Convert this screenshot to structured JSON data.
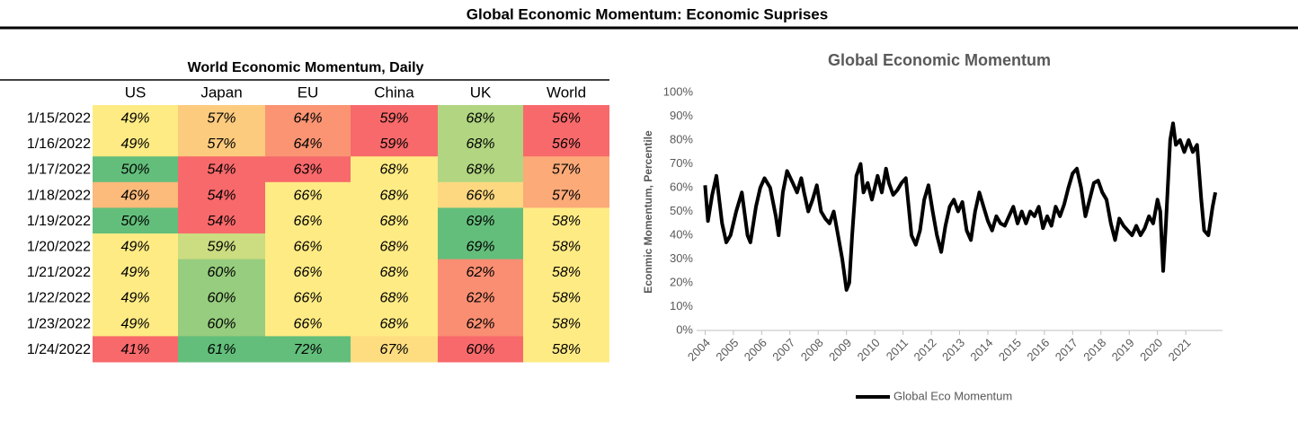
{
  "header": {
    "title": "Global Economic Momentum: Economic Suprises"
  },
  "table": {
    "title": "World Economic Momentum, Daily",
    "columns": [
      "US",
      "Japan",
      "EU",
      "China",
      "UK",
      "World"
    ],
    "rows": [
      {
        "date": "1/15/2022",
        "values": [
          49,
          57,
          64,
          59,
          68,
          56
        ],
        "value_labels": [
          "49%",
          "57%",
          "64%",
          "59%",
          "68%",
          "56%"
        ]
      },
      {
        "date": "1/16/2022",
        "values": [
          49,
          57,
          64,
          59,
          68,
          56
        ],
        "value_labels": [
          "49%",
          "57%",
          "64%",
          "59%",
          "68%",
          "56%"
        ]
      },
      {
        "date": "1/17/2022",
        "values": [
          50,
          54,
          63,
          68,
          68,
          57
        ],
        "value_labels": [
          "50%",
          "54%",
          "63%",
          "68%",
          "68%",
          "57%"
        ]
      },
      {
        "date": "1/18/2022",
        "values": [
          46,
          54,
          66,
          68,
          66,
          57
        ],
        "value_labels": [
          "46%",
          "54%",
          "66%",
          "68%",
          "66%",
          "57%"
        ]
      },
      {
        "date": "1/19/2022",
        "values": [
          50,
          54,
          66,
          68,
          69,
          58
        ],
        "value_labels": [
          "50%",
          "54%",
          "66%",
          "68%",
          "69%",
          "58%"
        ]
      },
      {
        "date": "1/20/2022",
        "values": [
          49,
          59,
          66,
          68,
          69,
          58
        ],
        "value_labels": [
          "49%",
          "59%",
          "66%",
          "68%",
          "69%",
          "58%"
        ]
      },
      {
        "date": "1/21/2022",
        "values": [
          49,
          60,
          66,
          68,
          62,
          58
        ],
        "value_labels": [
          "49%",
          "60%",
          "66%",
          "68%",
          "62%",
          "58%"
        ]
      },
      {
        "date": "1/22/2022",
        "values": [
          49,
          60,
          66,
          68,
          62,
          58
        ],
        "value_labels": [
          "49%",
          "60%",
          "66%",
          "68%",
          "62%",
          "58%"
        ]
      },
      {
        "date": "1/23/2022",
        "values": [
          49,
          60,
          66,
          68,
          62,
          58
        ],
        "value_labels": [
          "49%",
          "60%",
          "66%",
          "68%",
          "62%",
          "58%"
        ]
      },
      {
        "date": "1/24/2022",
        "values": [
          41,
          61,
          72,
          67,
          60,
          58
        ],
        "value_labels": [
          "41%",
          "61%",
          "72%",
          "67%",
          "60%",
          "58%"
        ]
      }
    ],
    "colors": {
      "low": "#f8696b",
      "mid": "#ffeb84",
      "high": "#63be7b"
    }
  },
  "chart_data": {
    "type": "line",
    "title": "Global Economic Momentum",
    "y_label": "Econmic Momentum, Percentile",
    "x": [
      2004.0,
      2004.1,
      2004.25,
      2004.4,
      2004.6,
      2004.75,
      2004.9,
      2005.1,
      2005.3,
      2005.5,
      2005.6,
      2005.8,
      2005.95,
      2006.1,
      2006.3,
      2006.5,
      2006.6,
      2006.75,
      2006.9,
      2007.1,
      2007.25,
      2007.4,
      2007.5,
      2007.65,
      2007.8,
      2007.95,
      2008.1,
      2008.25,
      2008.4,
      2008.55,
      2008.7,
      2008.85,
      2009.0,
      2009.1,
      2009.2,
      2009.35,
      2009.5,
      2009.6,
      2009.75,
      2009.9,
      2010.1,
      2010.25,
      2010.4,
      2010.5,
      2010.65,
      2010.8,
      2010.95,
      2011.1,
      2011.2,
      2011.3,
      2011.45,
      2011.6,
      2011.75,
      2011.9,
      2012.05,
      2012.2,
      2012.35,
      2012.5,
      2012.65,
      2012.8,
      2012.95,
      2013.1,
      2013.25,
      2013.4,
      2013.55,
      2013.7,
      2013.85,
      2014.0,
      2014.15,
      2014.3,
      2014.45,
      2014.6,
      2014.75,
      2014.9,
      2015.05,
      2015.2,
      2015.35,
      2015.5,
      2015.65,
      2015.8,
      2015.95,
      2016.1,
      2016.25,
      2016.4,
      2016.55,
      2016.7,
      2016.85,
      2017.0,
      2017.15,
      2017.3,
      2017.45,
      2017.6,
      2017.75,
      2017.9,
      2018.05,
      2018.2,
      2018.35,
      2018.5,
      2018.65,
      2018.8,
      2018.95,
      2019.1,
      2019.25,
      2019.4,
      2019.55,
      2019.7,
      2019.85,
      2020.0,
      2020.1,
      2020.2,
      2020.3,
      2020.45,
      2020.55,
      2020.65,
      2020.8,
      2020.95,
      2021.1,
      2021.25,
      2021.4,
      2021.55,
      2021.65,
      2021.8,
      2021.95,
      2022.05
    ],
    "series": [
      {
        "name": "Global Eco Momentum",
        "color": "#000000",
        "values": [
          61,
          46,
          57,
          65,
          45,
          37,
          40,
          50,
          58,
          40,
          37,
          52,
          60,
          64,
          60,
          48,
          40,
          58,
          67,
          62,
          58,
          64,
          58,
          50,
          55,
          61,
          50,
          47,
          45,
          50,
          40,
          30,
          17,
          20,
          40,
          65,
          70,
          58,
          62,
          55,
          65,
          58,
          68,
          62,
          57,
          59,
          62,
          64,
          52,
          40,
          36,
          42,
          55,
          61,
          50,
          40,
          33,
          44,
          52,
          55,
          50,
          54,
          42,
          38,
          50,
          58,
          52,
          46,
          42,
          48,
          45,
          44,
          48,
          52,
          45,
          50,
          45,
          50,
          48,
          52,
          43,
          48,
          44,
          52,
          48,
          53,
          60,
          66,
          68,
          60,
          48,
          55,
          62,
          63,
          58,
          55,
          45,
          38,
          47,
          44,
          42,
          40,
          44,
          40,
          43,
          48,
          45,
          55,
          50,
          25,
          45,
          80,
          87,
          78,
          80,
          75,
          80,
          75,
          78,
          55,
          42,
          40,
          52,
          58
        ]
      }
    ],
    "xlim": [
      2003.7,
      2022.3
    ],
    "xticks": [
      2004,
      2005,
      2006,
      2007,
      2008,
      2009,
      2010,
      2011,
      2012,
      2013,
      2014,
      2015,
      2016,
      2017,
      2018,
      2019,
      2020,
      2021
    ],
    "ylim": [
      0,
      100
    ],
    "yticks": [
      {
        "value": 0,
        "label": "0%"
      },
      {
        "value": 10,
        "label": "10%"
      },
      {
        "value": 20,
        "label": "20%"
      },
      {
        "value": 30,
        "label": "30%"
      },
      {
        "value": 40,
        "label": "40%"
      },
      {
        "value": 50,
        "label": "50%"
      },
      {
        "value": 60,
        "label": "60%"
      },
      {
        "value": 70,
        "label": "70%"
      },
      {
        "value": 80,
        "label": "80%"
      },
      {
        "value": 90,
        "label": "90%"
      },
      {
        "value": 100,
        "label": "100%"
      }
    ],
    "legend": "bottom"
  }
}
